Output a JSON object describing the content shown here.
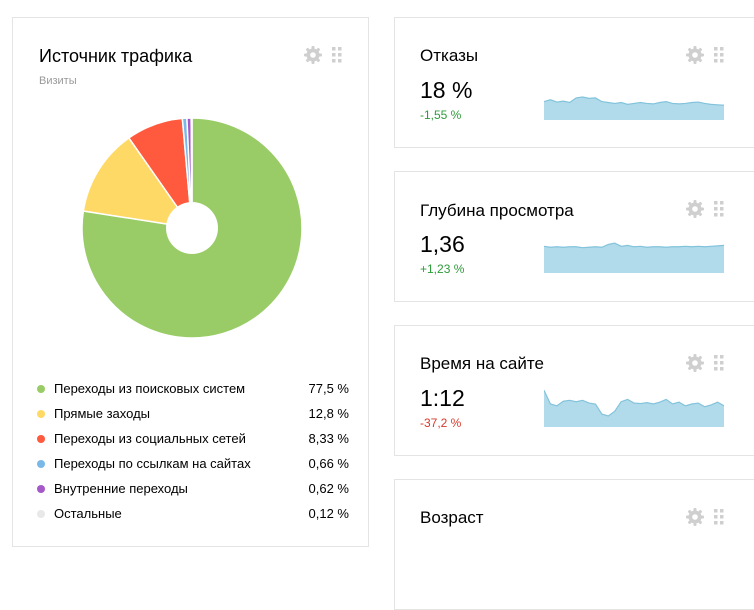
{
  "traffic": {
    "title": "Источник трафика",
    "subtitle": "Визиты",
    "chart_data": {
      "type": "pie",
      "categories": [
        "Переходы из поисковых систем",
        "Прямые заходы",
        "Переходы из социальных сетей",
        "Переходы по ссылкам на сайтах",
        "Внутренние переходы",
        "Остальные"
      ],
      "values": [
        77.5,
        12.8,
        8.33,
        0.66,
        0.62,
        0.12
      ],
      "colors": [
        "#99cc66",
        "#ffd966",
        "#ff5a3d",
        "#7ab8e8",
        "#a559c8",
        "#e8e8e8"
      ],
      "donut": true
    },
    "legend": [
      {
        "label": "Переходы из поисковых систем",
        "value": "77,5 %",
        "color": "#99cc66"
      },
      {
        "label": "Прямые заходы",
        "value": "12,8 %",
        "color": "#ffd966"
      },
      {
        "label": "Переходы из социальных сетей",
        "value": "8,33 %",
        "color": "#ff5a3d"
      },
      {
        "label": "Переходы по ссылкам на сайтах",
        "value": "0,66 %",
        "color": "#7ab8e8"
      },
      {
        "label": "Внутренние переходы",
        "value": "0,62 %",
        "color": "#a559c8"
      },
      {
        "label": "Остальные",
        "value": "0,12 %",
        "color": "#e8e8e8"
      }
    ]
  },
  "bounce": {
    "title": "Отказы",
    "value": "18 %",
    "delta": "-1,55 %",
    "delta_color": "#2e9b3a",
    "chart_data": {
      "type": "area",
      "values": [
        40,
        44,
        39,
        41,
        38,
        48,
        50,
        47,
        48,
        40,
        38,
        36,
        38,
        34,
        36,
        38,
        36,
        35,
        38,
        40,
        36,
        35,
        36,
        38,
        39,
        36,
        34,
        33,
        32
      ]
    }
  },
  "depth": {
    "title": "Глубина просмотра",
    "value": "1,36",
    "delta": "+1,23 %",
    "delta_color": "#2e9b3a",
    "chart_data": {
      "type": "area",
      "values": [
        58,
        56,
        57,
        56,
        57,
        57,
        55,
        56,
        57,
        56,
        62,
        65,
        58,
        60,
        57,
        58,
        56,
        57,
        57,
        56,
        57,
        57,
        58,
        57,
        58,
        57,
        58,
        59,
        60
      ]
    }
  },
  "time": {
    "title": "Время на сайте",
    "value": "1:12",
    "delta": "-37,2 %",
    "delta_color": "#d63a2a",
    "chart_data": {
      "type": "area",
      "values": [
        80,
        50,
        46,
        56,
        58,
        55,
        58,
        52,
        50,
        28,
        24,
        34,
        55,
        60,
        52,
        51,
        53,
        50,
        54,
        60,
        50,
        54,
        46,
        50,
        52,
        44,
        48,
        54,
        46
      ]
    }
  },
  "age": {
    "title": "Возраст"
  },
  "accent": "#b1dbea",
  "accent_line": "#82c3dc"
}
